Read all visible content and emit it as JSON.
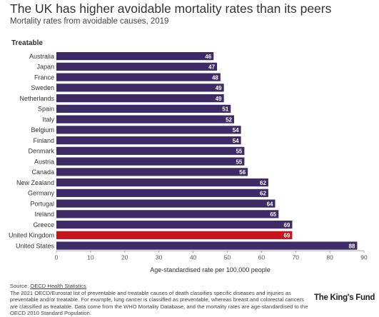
{
  "header": {
    "title": "The UK has higher avoidable mortality rates than its peers",
    "subtitle": "Mortality rates from avoidable causes, 2019",
    "panel_label": "Treatable"
  },
  "colors": {
    "bar": "#3d2a66",
    "highlight": "#c4161c",
    "axis": "#999999",
    "tick_text": "#555555",
    "label_text": "#333333",
    "value_text": "#ffffff"
  },
  "chart_data": {
    "type": "bar",
    "orientation": "horizontal",
    "title": "The UK has higher avoidable mortality rates than its peers",
    "subtitle": "Mortality rates from avoidable causes, 2019",
    "xlabel": "Age-standardised rate per 100,000 people",
    "ylabel": "",
    "xlim": [
      0,
      90
    ],
    "xticks": [
      0,
      10,
      20,
      30,
      40,
      50,
      60,
      70,
      80,
      90
    ],
    "grid": false,
    "highlight": "United Kingdom",
    "categories": [
      "Australia",
      "Japan",
      "France",
      "Sweden",
      "Netherlands",
      "Spain",
      "Italy",
      "Belgium",
      "Finland",
      "Denmark",
      "Austria",
      "Canada",
      "New Zealand",
      "Germany",
      "Portugal",
      "Ireland",
      "Greece",
      "United Kingdom",
      "United States"
    ],
    "values": [
      46,
      47,
      48,
      49,
      49,
      51,
      52,
      54,
      54,
      55,
      55,
      56,
      62,
      62,
      64,
      65,
      69,
      69,
      88
    ]
  },
  "footer": {
    "source_prefix": "Source: ",
    "source_link": "OECD Health Statistics",
    "note": "The 2021 OECD/Eurostat list of preventable and treatable causes of death classifies specific diseases and injuries as preventable and/or treatable. For example, lung cancer is classified as preventable, whereas breast and colorectal cancers are classified as treatable. Data come from the WHO Mortality Database, and the mortality rates are age-standardised to the OECD 2010 Standard Population.",
    "logo": "The King's Fund"
  }
}
